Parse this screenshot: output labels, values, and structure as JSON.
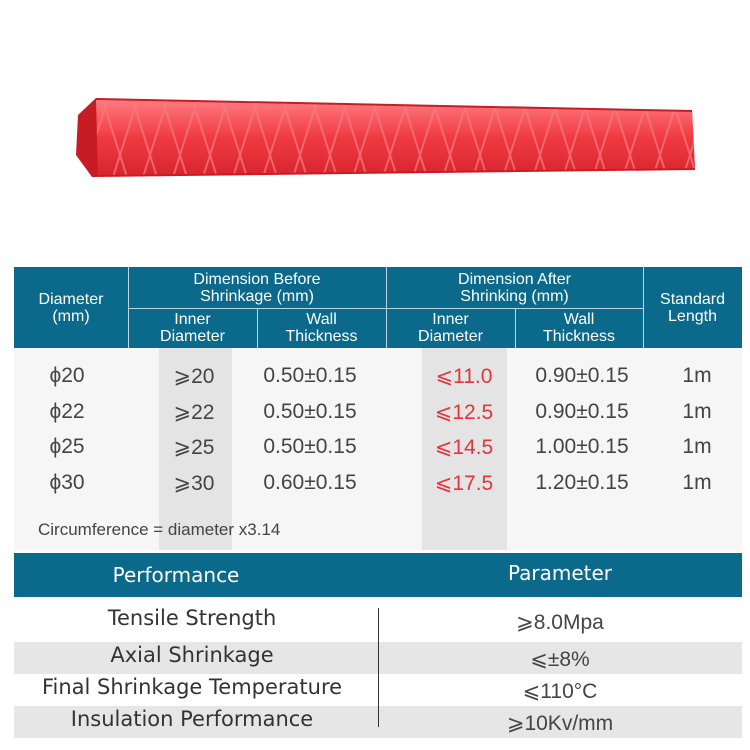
{
  "product": {
    "name": "",
    "color": "#e8353c"
  },
  "spec_table": {
    "header_color": "#0b6a8b",
    "col_diameter": "Diameter (mm)",
    "group_before": "Dimension Before Shrinkage (mm)",
    "group_after": "Dimension After Shrinking (mm)",
    "col_standard_length": "Standard Length",
    "sub_inner": "Inner Diameter",
    "sub_wall": "Wall Thickness",
    "rows": [
      {
        "diameter": "ϕ20",
        "before_inner": "⩾20",
        "before_wall": "0.50±0.15",
        "after_inner": "⩽11.0",
        "after_wall": "0.90±0.15",
        "length": "1m"
      },
      {
        "diameter": "ϕ22",
        "before_inner": "⩾22",
        "before_wall": "0.50±0.15",
        "after_inner": "⩽12.5",
        "after_wall": "0.90±0.15",
        "length": "1m"
      },
      {
        "diameter": "ϕ25",
        "before_inner": "⩾25",
        "before_wall": "0.50±0.15",
        "after_inner": "⩽14.5",
        "after_wall": "1.00±0.15",
        "length": "1m"
      },
      {
        "diameter": "ϕ30",
        "before_inner": "⩾30",
        "before_wall": "0.60±0.15",
        "after_inner": "⩽17.5",
        "after_wall": "1.20±0.15",
        "length": "1m"
      }
    ],
    "note": "Circumference = diameter x3.14",
    "highlight_color": "#e8333a"
  },
  "performance_table": {
    "col_performance": "Performance",
    "col_parameter": "Parameter",
    "rows": [
      {
        "name": "Tensile Strength",
        "value": "⩾8.0Mpa"
      },
      {
        "name": "Axial Shrinkage",
        "value": "⩽±8%"
      },
      {
        "name": "Final Shrinkage Temperature",
        "value": "⩽110°C"
      },
      {
        "name": "Insulation Performance",
        "value": "⩾10Kv/mm"
      }
    ]
  }
}
